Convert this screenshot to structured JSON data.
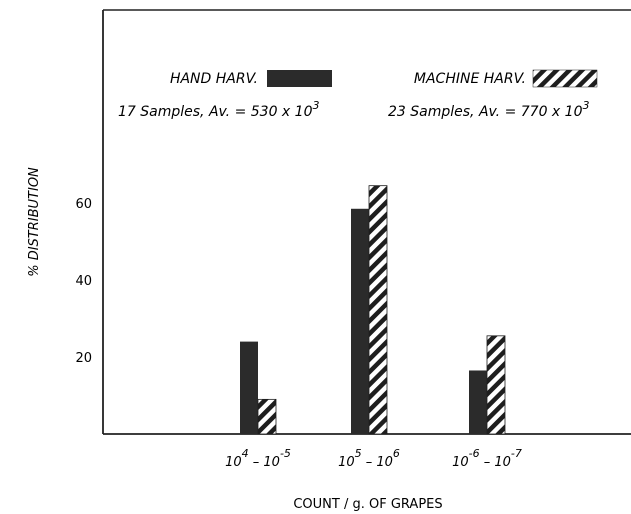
{
  "chart_data": {
    "type": "bar",
    "title": "",
    "xlabel": "COUNT / g. OF GRAPES",
    "ylabel": "% DISTRIBUTION",
    "categories": [
      {
        "base": "10",
        "exp1": "4",
        "sep": " – ",
        "base2": "10",
        "exp2": "-5"
      },
      {
        "base": "10",
        "exp1": "5",
        "sep": " – ",
        "base2": "10",
        "exp2": "6"
      },
      {
        "base": "10",
        "exp1": "-6",
        "sep": " – ",
        "base2": "10",
        "exp2": "-7"
      }
    ],
    "series": [
      {
        "name": "HAND HARV.",
        "pattern": "solid",
        "values": [
          24,
          58.5,
          16.5
        ],
        "note_prefix": "17 Samples, Av. = 530 x 10",
        "note_exp": "3"
      },
      {
        "name": "MACHINE HARV.",
        "pattern": "diagonal-hatch",
        "values": [
          9,
          64.5,
          25.5
        ],
        "note_prefix": "23 Samples, Av. = 770 x 10",
        "note_exp": "3"
      }
    ],
    "yticks": [
      20,
      40,
      60
    ],
    "ylim": [
      0,
      70
    ],
    "grid": false,
    "legend_position": "top",
    "colors": {
      "bar_fill": "#2b2b2b",
      "hatch": "#1e1e1e",
      "axis": "#222222",
      "background": "#ffffff"
    }
  }
}
